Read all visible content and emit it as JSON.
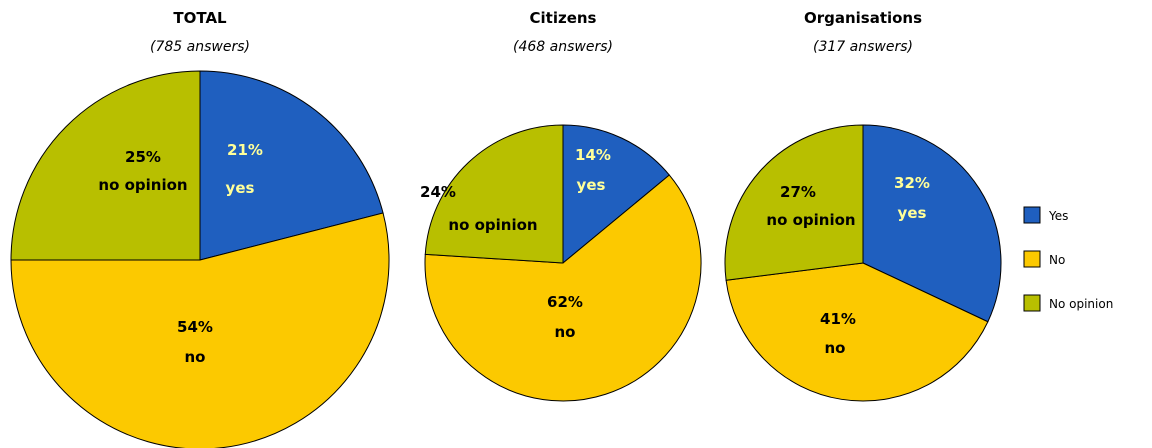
{
  "chart_data": [
    {
      "type": "pie",
      "title": "TOTAL",
      "subtitle": "(785 answers)",
      "slices": [
        {
          "category": "Yes",
          "value": 21,
          "label_pct": "21%",
          "label_word": "yes"
        },
        {
          "category": "No",
          "value": 54,
          "label_pct": "54%",
          "label_word": "no"
        },
        {
          "category": "No opinion",
          "value": 25,
          "label_pct": "25%",
          "label_word": "no opinion"
        }
      ]
    },
    {
      "type": "pie",
      "title": "Citizens",
      "subtitle": "(468 answers)",
      "slices": [
        {
          "category": "Yes",
          "value": 14,
          "label_pct": "14%",
          "label_word": "yes"
        },
        {
          "category": "No",
          "value": 62,
          "label_pct": "62%",
          "label_word": "no"
        },
        {
          "category": "No opinion",
          "value": 24,
          "label_pct": "24%",
          "label_word": "no opinion"
        }
      ]
    },
    {
      "type": "pie",
      "title": "Organisations",
      "subtitle": "(317 answers)",
      "slices": [
        {
          "category": "Yes",
          "value": 32,
          "label_pct": "32%",
          "label_word": "yes"
        },
        {
          "category": "No",
          "value": 41,
          "label_pct": "41%",
          "label_word": "no"
        },
        {
          "category": "No opinion",
          "value": 27,
          "label_pct": "27%",
          "label_word": "no opinion"
        }
      ]
    }
  ],
  "legend": {
    "placement": "right",
    "items": [
      {
        "category": "Yes",
        "label": "Yes",
        "color": "#1f5fbf"
      },
      {
        "category": "No",
        "label": "No",
        "color": "#fcc900"
      },
      {
        "category": "No opinion",
        "label": "No opinion",
        "color": "#b8bf00"
      }
    ]
  },
  "colors": {
    "label_on_blue": "#ffff99",
    "label_on_yellow": "#000000",
    "label_on_olive": "#000000",
    "slice_border": "#000000"
  }
}
